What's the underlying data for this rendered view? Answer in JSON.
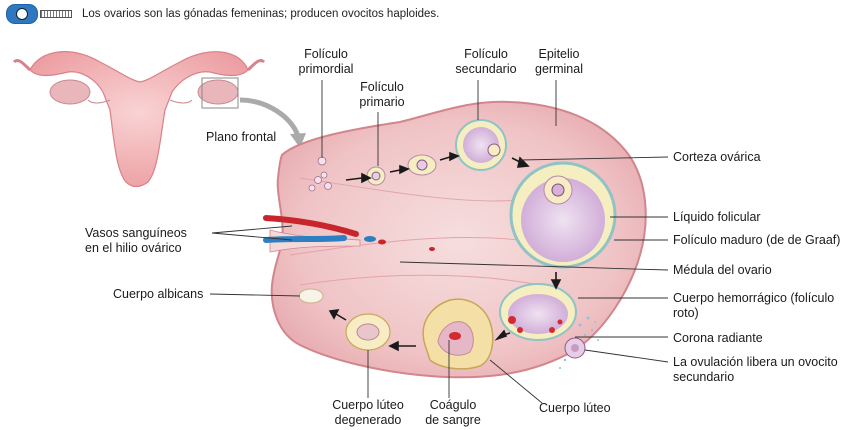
{
  "header": {
    "icon": "lock-badge-icon",
    "caption": "Los ovarios son las gónadas femeninas; producen ovocitos haploides."
  },
  "labels": {
    "plano_frontal": "Plano frontal",
    "foliculo_primordial": [
      "Folículo",
      "primordial"
    ],
    "foliculo_primario": [
      "Folículo",
      "primario"
    ],
    "foliculo_secundario": [
      "Folículo",
      "secundario"
    ],
    "epitelio_germinal": [
      "Epitelio",
      "germinal"
    ],
    "corteza_ovarica": "Corteza ovárica",
    "liquido_folicular": "Líquido folicular",
    "foliculo_maduro": "Folículo maduro (de de Graaf)",
    "vasos_sanguineos": [
      "Vasos sanguíneos",
      "en el hilio ovárico"
    ],
    "medula_ovario": "Médula del ovario",
    "cuerpo_albicans": "Cuerpo albicans",
    "cuerpo_hemorragico": [
      "Cuerpo hemorrágico (folículo",
      "roto)"
    ],
    "corona_radiante": "Corona radiante",
    "ovulacion": [
      "La ovulación libera un ovocito",
      "secundario"
    ],
    "cuerpo_luteo_degenerado": [
      "Cuerpo lúteo",
      "degenerado"
    ],
    "coagulo_sangre": [
      "Coágulo",
      "de sangre"
    ],
    "cuerpo_luteo": "Cuerpo lúteo"
  },
  "colors": {
    "ovary_fill": "#f2c9c9",
    "ovary_edge": "#d98f95",
    "follicle_fill": "#e2c6e3",
    "follicle_ring": "#f5eec0",
    "uterus": "#f3b3b5",
    "vessel_red": "#c8252c",
    "vessel_blue": "#2d7fc1",
    "leader_line": "#333333"
  }
}
